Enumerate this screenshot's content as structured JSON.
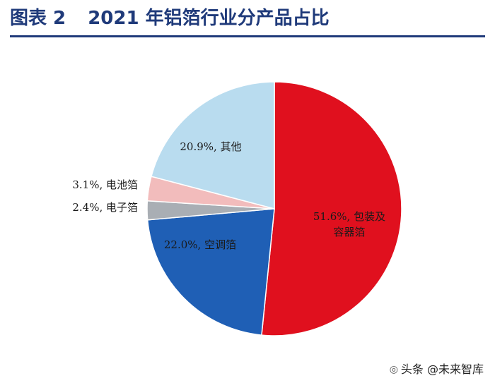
{
  "header": {
    "figure_label": "图表 2",
    "title": "2021 年铝箔行业分产品占比"
  },
  "chart_data": {
    "type": "pie",
    "title": "2021 年铝箔行业分产品占比",
    "start_angle_deg": 90,
    "direction": "clockwise",
    "slices": [
      {
        "label_lines": [
          "51.6%, 包装及",
          "容器箔"
        ],
        "name": "包装及容器箔",
        "value": 51.6,
        "color": "#e0101e"
      },
      {
        "label_lines": [
          "22.0%, 空调箔"
        ],
        "name": "空调箔",
        "value": 22.0,
        "color": "#1f5fb5"
      },
      {
        "label_lines": [
          "2.4%, 电子箔"
        ],
        "name": "电子箔",
        "value": 2.4,
        "color": "#a9aeb4"
      },
      {
        "label_lines": [
          "3.1%, 电池箔"
        ],
        "name": "电池箔",
        "value": 3.1,
        "color": "#f2bcbc"
      },
      {
        "label_lines": [
          "20.9%, 其他"
        ],
        "name": "其他",
        "value": 20.9,
        "color": "#b9dcef"
      }
    ]
  },
  "watermark": {
    "text": "头条 @未来智库",
    "icon": "wechat-icon"
  }
}
